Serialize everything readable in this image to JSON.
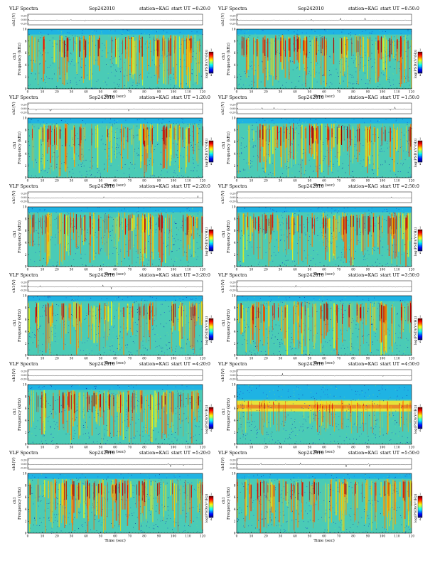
{
  "chart_data": {
    "type": "heatmap",
    "common": {
      "title": "VLF Spectra",
      "date": "Sep242010",
      "station_label": "station=KAG",
      "waveform_ylabel": "ch1(V)",
      "waveform_yticks": [
        "0.20",
        "0.00",
        "-0.20"
      ],
      "spectrogram_ylabel": "Frequency (kHz)",
      "spectrogram_ylabel_prefix": "ch1",
      "spectrogram_yticks": [
        0,
        2,
        4,
        6,
        8,
        10
      ],
      "xlabel": "Time (sec)",
      "xticks": [
        0,
        10,
        20,
        30,
        40,
        50,
        60,
        70,
        80,
        90,
        100,
        110,
        120
      ],
      "xlim": [
        0,
        120
      ],
      "ylim": [
        0,
        10
      ],
      "colorbar_label": "log(PSD)(V²/Hz)",
      "colorbar_ticks": [
        "-1",
        "-4"
      ]
    },
    "panels": [
      {
        "start_label": "start UT =0:20:0",
        "band": "broad"
      },
      {
        "start_label": "start UT =0:50:0",
        "band": "broad"
      },
      {
        "start_label": "start UT =1:20:0",
        "band": "broad"
      },
      {
        "start_label": "start UT =1:50:0",
        "band": "broad"
      },
      {
        "start_label": "start UT =2:20:0",
        "band": "broad"
      },
      {
        "start_label": "start UT =2:50:0",
        "band": "broad"
      },
      {
        "start_label": "start UT =3:20:0",
        "band": "broad"
      },
      {
        "start_label": "start UT =3:50:0",
        "band": "broad"
      },
      {
        "start_label": "start UT =4:20:0",
        "band": "broad"
      },
      {
        "start_label": "start UT =4:50:0",
        "band": "narrow"
      },
      {
        "start_label": "start UT =5:20:0",
        "band": "broad"
      },
      {
        "start_label": "start UT =5:50:0",
        "band": "broad"
      }
    ]
  }
}
